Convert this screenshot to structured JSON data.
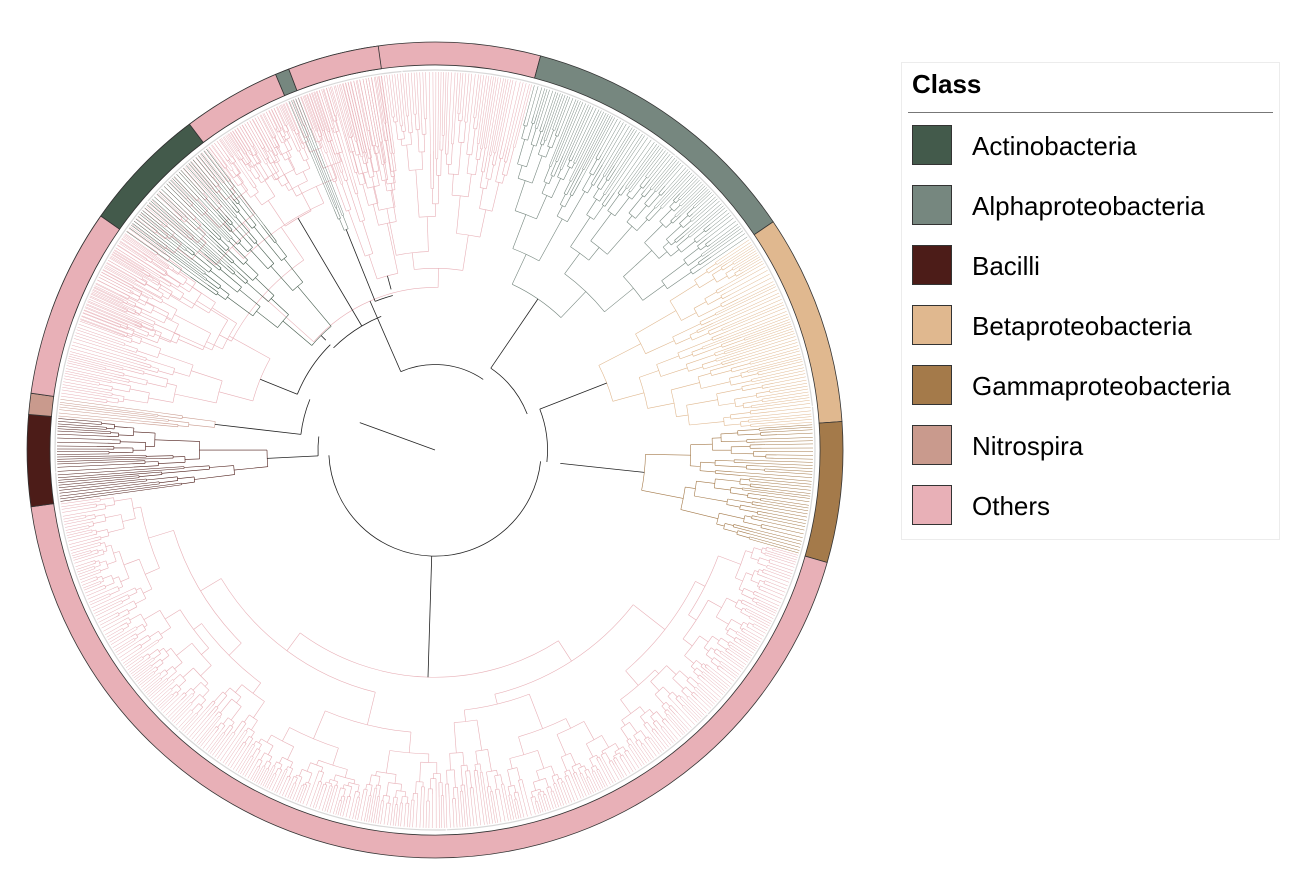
{
  "legend": {
    "title": "Class",
    "items": [
      {
        "label": "Actinobacteria",
        "color": "#435a4b"
      },
      {
        "label": "Alphaproteobacteria",
        "color": "#76877f"
      },
      {
        "label": "Bacilli",
        "color": "#4c1c18"
      },
      {
        "label": "Betaproteobacteria",
        "color": "#e0b88f"
      },
      {
        "label": "Gammaproteobacteria",
        "color": "#a47a4a"
      },
      {
        "label": "Nitrospira",
        "color": "#c99a8d"
      },
      {
        "label": "Others",
        "color": "#e8b0b7"
      }
    ]
  },
  "tree": {
    "clades": [
      {
        "class": "Others",
        "start_deg": -160,
        "end_deg": -75,
        "color": "#e8b0b7"
      },
      {
        "class": "Alphaproteobacteria",
        "start_deg": -75,
        "end_deg": -34,
        "color": "#76877f"
      },
      {
        "class": "Betaproteobacteria",
        "start_deg": -34,
        "end_deg": -4,
        "color": "#e0b88f"
      },
      {
        "class": "Gammaproteobacteria",
        "start_deg": -4,
        "end_deg": 16,
        "color": "#a47a4a"
      },
      {
        "class": "Others",
        "start_deg": 16,
        "end_deg": 172,
        "color": "#e8b0b7"
      },
      {
        "class": "Bacilli",
        "start_deg": 172,
        "end_deg": 185,
        "color": "#4c1c18"
      },
      {
        "class": "Nitrospira",
        "start_deg": 185,
        "end_deg": 188,
        "color": "#c99a8d"
      },
      {
        "class": "Others",
        "start_deg": 188,
        "end_deg": 215,
        "color": "#e8b0b7"
      },
      {
        "class": "Actinobacteria",
        "start_deg": 215,
        "end_deg": 233,
        "color": "#435a4b"
      },
      {
        "class": "Others",
        "start_deg": 233,
        "end_deg": 247,
        "color": "#e8b0b7"
      },
      {
        "class": "Alphaproteobacteria",
        "start_deg": 247,
        "end_deg": 249,
        "color": "#76877f"
      },
      {
        "class": "Others",
        "start_deg": 249,
        "end_deg": 262,
        "color": "#e8b0b7"
      }
    ]
  }
}
